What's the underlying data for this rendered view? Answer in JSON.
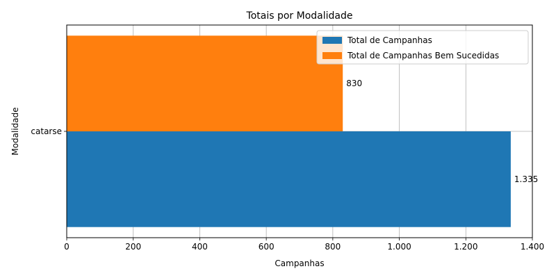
{
  "chart_data": {
    "type": "bar",
    "orientation": "horizontal",
    "title": "Totais por Modalidade",
    "xlabel": "Campanhas",
    "ylabel": "Modalidade",
    "categories": [
      "catarse"
    ],
    "series": [
      {
        "name": "Total de Campanhas",
        "values": [
          1335
        ],
        "labels": [
          "1.335"
        ],
        "color": "#1f77b4"
      },
      {
        "name": "Total de Campanhas Bem Sucedidas",
        "values": [
          830
        ],
        "labels": [
          "830"
        ],
        "color": "#ff7f0e"
      }
    ],
    "xlim": [
      0,
      1400
    ],
    "xticks": [
      0,
      200,
      400,
      600,
      800,
      1000,
      1200,
      1400
    ],
    "xtick_labels": [
      "0",
      "200",
      "400",
      "600",
      "800",
      "1.000",
      "1.200",
      "1.400"
    ],
    "grid": true,
    "legend_position": "top-right"
  }
}
